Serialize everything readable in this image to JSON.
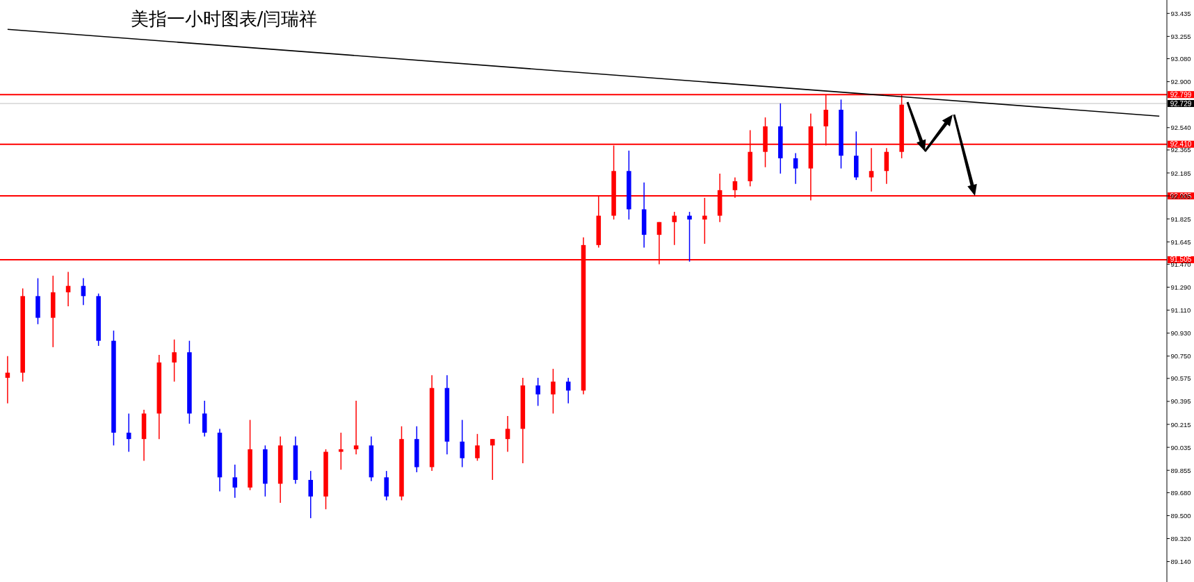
{
  "chart_data": {
    "type": "candlestick",
    "title": "美指一小时图表/闫瑞祥",
    "categories": [
      null,
      null,
      null,
      null,
      null,
      null,
      null,
      null,
      null,
      null,
      null,
      null,
      null,
      null,
      null,
      null,
      null,
      null,
      null,
      null,
      null,
      null,
      null,
      null,
      null,
      null,
      null,
      null,
      null,
      null,
      null,
      null,
      null,
      null,
      null,
      null,
      null,
      null,
      null,
      null,
      null,
      null,
      null,
      null,
      null,
      null,
      null,
      null,
      null,
      null,
      null,
      null,
      null,
      null,
      null,
      null,
      null,
      null,
      null,
      null,
      null,
      null,
      null,
      null,
      null,
      null,
      null,
      null,
      null,
      null,
      null,
      null,
      null,
      null,
      null,
      null,
      null
    ],
    "ohlc": [
      [
        90.58,
        90.75,
        90.38,
        90.62
      ],
      [
        90.62,
        91.28,
        90.55,
        91.22
      ],
      [
        91.22,
        91.36,
        91.0,
        91.05
      ],
      [
        91.05,
        91.38,
        90.82,
        91.25
      ],
      [
        91.25,
        91.41,
        91.14,
        91.3
      ],
      [
        91.3,
        91.36,
        91.15,
        91.22
      ],
      [
        91.22,
        91.24,
        90.83,
        90.87
      ],
      [
        90.87,
        90.95,
        90.05,
        90.15
      ],
      [
        90.15,
        90.3,
        90.0,
        90.1
      ],
      [
        90.1,
        90.33,
        89.93,
        90.3
      ],
      [
        90.3,
        90.76,
        90.1,
        90.7
      ],
      [
        90.7,
        90.88,
        90.55,
        90.78
      ],
      [
        90.78,
        90.87,
        90.22,
        90.3
      ],
      [
        90.3,
        90.4,
        90.12,
        90.15
      ],
      [
        90.15,
        90.18,
        89.69,
        89.8
      ],
      [
        89.8,
        89.9,
        89.64,
        89.72
      ],
      [
        89.72,
        90.25,
        89.7,
        90.02
      ],
      [
        90.02,
        90.05,
        89.65,
        89.75
      ],
      [
        89.75,
        90.12,
        89.6,
        90.05
      ],
      [
        90.05,
        90.12,
        89.75,
        89.78
      ],
      [
        89.78,
        89.85,
        89.48,
        89.65
      ],
      [
        89.65,
        90.02,
        89.55,
        90.0
      ],
      [
        90.0,
        90.15,
        89.86,
        90.02
      ],
      [
        90.02,
        90.4,
        89.98,
        90.05
      ],
      [
        90.05,
        90.12,
        89.77,
        89.8
      ],
      [
        89.8,
        89.85,
        89.62,
        89.65
      ],
      [
        89.65,
        90.2,
        89.62,
        90.1
      ],
      [
        90.1,
        90.2,
        89.84,
        89.88
      ],
      [
        89.88,
        90.6,
        89.85,
        90.5
      ],
      [
        90.5,
        90.6,
        89.98,
        90.08
      ],
      [
        90.08,
        90.25,
        89.88,
        89.95
      ],
      [
        89.95,
        90.14,
        89.93,
        90.05
      ],
      [
        90.05,
        90.1,
        89.78,
        90.1
      ],
      [
        90.1,
        90.28,
        90.0,
        90.18
      ],
      [
        90.18,
        90.58,
        89.91,
        90.52
      ],
      [
        90.52,
        90.58,
        90.36,
        90.45
      ],
      [
        90.45,
        90.65,
        90.3,
        90.55
      ],
      [
        90.55,
        90.58,
        90.38,
        90.48
      ],
      [
        90.48,
        91.68,
        90.45,
        91.62
      ],
      [
        91.62,
        92.0,
        91.6,
        91.85
      ],
      [
        91.85,
        92.4,
        91.82,
        92.2
      ],
      [
        92.2,
        92.36,
        91.82,
        91.9
      ],
      [
        91.9,
        92.11,
        91.6,
        91.7
      ],
      [
        91.7,
        91.8,
        91.47,
        91.8
      ],
      [
        91.8,
        91.88,
        91.62,
        91.85
      ],
      [
        91.85,
        91.88,
        91.49,
        91.82
      ],
      [
        91.82,
        91.99,
        91.63,
        91.85
      ],
      [
        91.85,
        92.18,
        91.8,
        92.05
      ],
      [
        92.05,
        92.15,
        91.99,
        92.12
      ],
      [
        92.12,
        92.52,
        92.08,
        92.35
      ],
      [
        92.35,
        92.62,
        92.23,
        92.55
      ],
      [
        92.55,
        92.73,
        92.18,
        92.3
      ],
      [
        92.3,
        92.34,
        92.1,
        92.22
      ],
      [
        92.22,
        92.65,
        91.97,
        92.55
      ],
      [
        92.55,
        92.8,
        92.4,
        92.68
      ],
      [
        92.68,
        92.76,
        92.22,
        92.32
      ],
      [
        92.32,
        92.51,
        92.13,
        92.15
      ],
      [
        92.15,
        92.38,
        92.04,
        92.2
      ],
      [
        92.2,
        92.38,
        92.1,
        92.35
      ],
      [
        92.35,
        92.8,
        92.3,
        92.72
      ],
      null,
      null,
      null,
      null,
      null,
      null,
      null,
      null,
      null,
      null,
      null,
      null,
      null,
      null,
      null,
      null,
      null
    ],
    "colors": [
      "#ff0000",
      "#ff0000",
      "#0000ff",
      "#ff0000",
      "#ff0000",
      "#0000ff",
      "#0000ff",
      "#0000ff",
      "#0000ff",
      "#ff0000",
      "#ff0000",
      "#ff0000",
      "#0000ff",
      "#0000ff",
      "#0000ff",
      "#0000ff",
      "#ff0000",
      "#0000ff",
      "#ff0000",
      "#0000ff",
      "#0000ff",
      "#ff0000",
      "#ff0000",
      "#ff0000",
      "#0000ff",
      "#0000ff",
      "#ff0000",
      "#0000ff",
      "#ff0000",
      "#0000ff",
      "#0000ff",
      "#ff0000",
      "#ff0000",
      "#ff0000",
      "#ff0000",
      "#0000ff",
      "#ff0000",
      "#0000ff",
      "#ff0000",
      "#ff0000",
      "#ff0000",
      "#0000ff",
      "#0000ff",
      "#ff0000",
      "#ff0000",
      "#0000ff",
      "#ff0000",
      "#ff0000",
      "#ff0000",
      "#ff0000",
      "#ff0000",
      "#0000ff",
      "#0000ff",
      "#ff0000",
      "#ff0000",
      "#0000ff",
      "#0000ff",
      "#ff0000",
      "#ff0000",
      "#ff0000",
      null,
      null,
      null,
      null,
      null,
      null,
      null,
      null,
      null,
      null,
      null,
      null,
      null,
      null,
      null,
      null,
      null
    ],
    "series": [
      {
        "type": "line",
        "color": "#000000",
        "values": [
          93.31,
          null,
          null,
          null,
          null,
          null,
          null,
          null,
          null,
          null,
          null,
          null,
          null,
          null,
          null,
          null,
          null,
          null,
          null,
          null,
          null,
          null,
          null,
          null,
          null,
          null,
          null,
          null,
          null,
          null,
          null,
          null,
          null,
          null,
          null,
          null,
          null,
          null,
          null,
          null,
          null,
          null,
          null,
          null,
          null,
          null,
          null,
          null,
          null,
          null,
          null,
          null,
          null,
          null,
          null,
          null,
          null,
          null,
          null,
          null,
          null,
          null,
          null,
          null,
          null,
          null,
          null,
          null,
          null,
          null,
          null,
          null,
          null,
          null,
          null,
          null,
          92.63
        ]
      }
    ],
    "ylim": [
      88.98,
      93.54
    ],
    "yticks": [
      93.435,
      93.255,
      {
        "value": 93.08,
        "label": "93.080"
      },
      {
        "value": 92.9,
        "label": "92.900"
      },
      {
        "value": 92.54,
        "label": "92.540"
      },
      92.365,
      92.185,
      92.005,
      91.825,
      91.645,
      {
        "value": 91.47,
        "label": "91.470"
      },
      {
        "value": 91.29,
        "label": "91.290"
      },
      {
        "value": 91.11,
        "label": "91.110"
      },
      {
        "value": 90.93,
        "label": "90.930"
      },
      {
        "value": 90.75,
        "label": "90.750"
      },
      90.575,
      90.395,
      90.215,
      90.035,
      89.855,
      {
        "value": 89.68,
        "label": "89.680"
      },
      {
        "value": 89.5,
        "label": "89.500"
      },
      {
        "value": 89.32,
        "label": "89.320"
      },
      {
        "value": 89.14,
        "label": "89.140"
      }
    ],
    "ref_lines": [
      {
        "axis": "y",
        "value": 92.799,
        "label": "92.799",
        "color": "#ff0000"
      },
      {
        "axis": "y",
        "value": 92.729,
        "label": "92.729",
        "color": "#c0c0c0"
      },
      {
        "axis": "y",
        "value": 92.41,
        "label": "92.410",
        "color": "#ff0000"
      },
      {
        "axis": "y",
        "value": 92.005,
        "label": "92.005",
        "color": "#ff0000"
      },
      {
        "axis": "y",
        "value": 91.505,
        "label": "91.505",
        "color": "#ff0000"
      }
    ],
    "tick_labels": "y",
    "grid": false
  }
}
